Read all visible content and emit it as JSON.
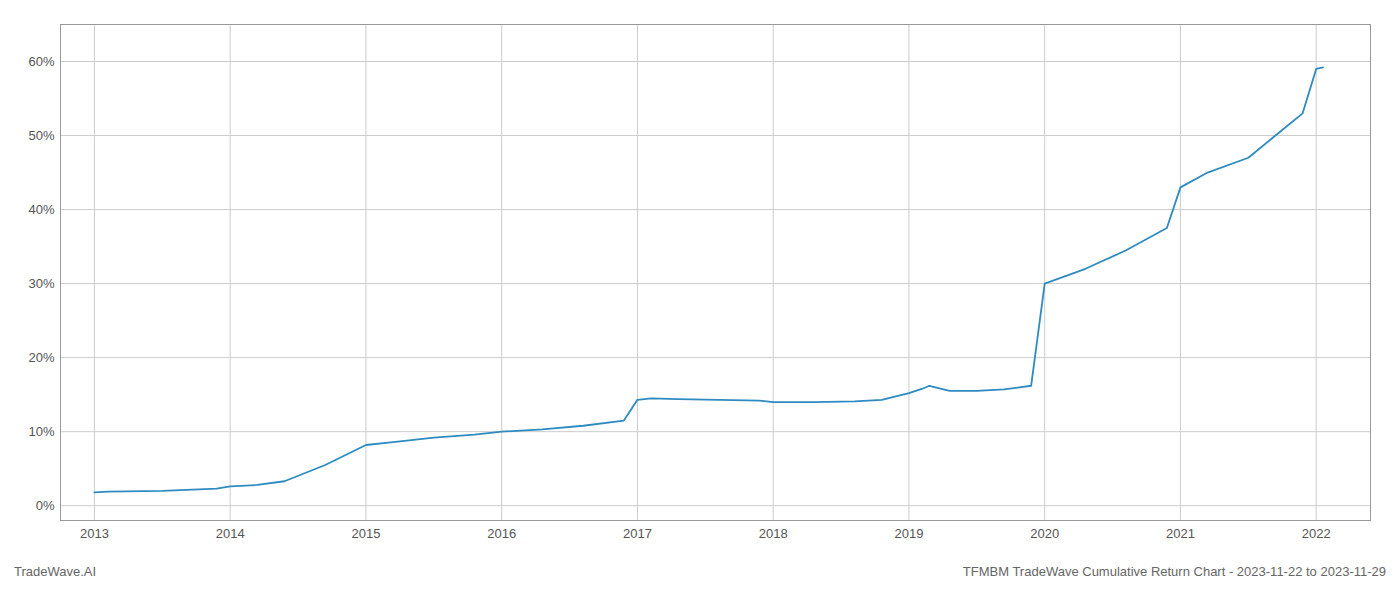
{
  "chart_data": {
    "type": "line",
    "x": [
      2013.0,
      2013.1,
      2013.5,
      2013.9,
      2014.0,
      2014.2,
      2014.4,
      2014.7,
      2015.0,
      2015.2,
      2015.5,
      2015.8,
      2016.0,
      2016.3,
      2016.6,
      2016.9,
      2017.0,
      2017.1,
      2017.3,
      2017.6,
      2017.9,
      2018.0,
      2018.3,
      2018.6,
      2018.8,
      2019.0,
      2019.1,
      2019.15,
      2019.3,
      2019.5,
      2019.7,
      2019.9,
      2020.0,
      2020.3,
      2020.6,
      2020.9,
      2021.0,
      2021.2,
      2021.5,
      2021.7,
      2021.9,
      2022.0,
      2022.05
    ],
    "values": [
      0.018,
      0.019,
      0.02,
      0.023,
      0.026,
      0.028,
      0.033,
      0.055,
      0.082,
      0.086,
      0.092,
      0.096,
      0.1,
      0.103,
      0.108,
      0.115,
      0.143,
      0.145,
      0.144,
      0.143,
      0.142,
      0.14,
      0.14,
      0.141,
      0.143,
      0.152,
      0.158,
      0.162,
      0.155,
      0.155,
      0.157,
      0.162,
      0.3,
      0.32,
      0.345,
      0.375,
      0.43,
      0.45,
      0.47,
      0.5,
      0.53,
      0.59,
      0.592
    ],
    "color": "#2e8bc0",
    "xlim": [
      2012.75,
      2022.4
    ],
    "ylim": [
      -0.02,
      0.65
    ],
    "xticks": [
      2013,
      2014,
      2015,
      2016,
      2017,
      2018,
      2019,
      2020,
      2021,
      2022
    ],
    "yticks": [
      {
        "value": 0.0,
        "label": "0%"
      },
      {
        "value": 0.1,
        "label": "10%"
      },
      {
        "value": 0.2,
        "label": "20%"
      },
      {
        "value": 0.3,
        "label": "30%"
      },
      {
        "value": 0.4,
        "label": "40%"
      },
      {
        "value": 0.5,
        "label": "50%"
      },
      {
        "value": 0.6,
        "label": "60%"
      }
    ],
    "grid": true,
    "annotations": [
      "TradeWave.AI",
      "TFMBM TradeWave Cumulative Return Chart - 2023-11-22 to 2023-11-29"
    ]
  }
}
